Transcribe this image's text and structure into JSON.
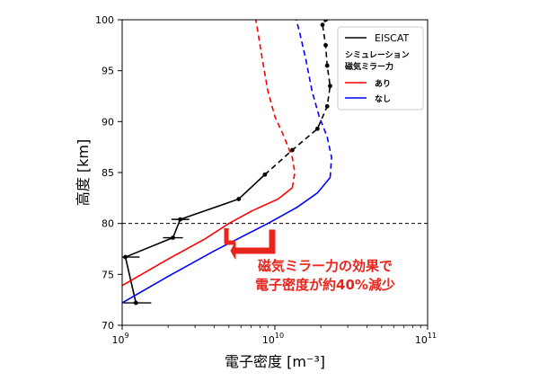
{
  "chart_data": {
    "type": "line",
    "xscale": "log",
    "xlim": [
      1000000000.0,
      100000000000.0
    ],
    "ylim": [
      70,
      100
    ],
    "xlabel": "電子密度 [m⁻³]",
    "ylabel": "高度 [km]",
    "xticks": [
      {
        "value": 1000000000.0,
        "base": "10",
        "exp": "9"
      },
      {
        "value": 10000000000.0,
        "base": "10",
        "exp": "10"
      },
      {
        "value": 100000000000.0,
        "base": "10",
        "exp": "11"
      }
    ],
    "yticks": [
      "70",
      "75",
      "80",
      "85",
      "90",
      "95",
      "100"
    ],
    "reference_line": {
      "y": 80,
      "color": "#000000",
      "style": "dashed"
    },
    "series": [
      {
        "name": "EISCAT",
        "color": "#000000",
        "marker": "dot",
        "points": [
          {
            "x": 1230000000.0,
            "y": 72.2,
            "xerr": [
              1020000000.0,
              1550000000.0
            ]
          },
          {
            "x": 1050000000.0,
            "y": 76.7,
            "xerr": [
              1000000000.0,
              1300000000.0
            ]
          },
          {
            "x": 2150000000.0,
            "y": 78.6,
            "xerr": [
              1850000000.0,
              2500000000.0
            ]
          },
          {
            "x": 2400000000.0,
            "y": 80.4,
            "xerr": [
              2100000000.0,
              2750000000.0
            ]
          },
          {
            "x": 5800000000.0,
            "y": 82.4
          },
          {
            "x": 8600000000.0,
            "y": 84.8
          },
          {
            "x": 13000000000.0,
            "y": 87.2
          },
          {
            "x": 19000000000.0,
            "y": 89.3
          },
          {
            "x": 22000000000.0,
            "y": 91.5
          },
          {
            "x": 23000000000.0,
            "y": 93.5
          },
          {
            "x": 22000000000.0,
            "y": 95.5
          },
          {
            "x": 21500000000.0,
            "y": 97.5
          },
          {
            "x": 20500000000.0,
            "y": 99.5
          },
          {
            "x": 21500000000.0,
            "y": 100.0
          }
        ],
        "dashed_above_y": 84.8
      },
      {
        "name": "あり",
        "color": "#ff0000",
        "dashed_above_y": 83.5,
        "points": [
          {
            "x": 1000000000.0,
            "y": 73.9
          },
          {
            "x": 2000000000.0,
            "y": 76.5
          },
          {
            "x": 3500000000.0,
            "y": 78.5
          },
          {
            "x": 5000000000.0,
            "y": 80.0
          },
          {
            "x": 7000000000.0,
            "y": 81.2
          },
          {
            "x": 10500000000.0,
            "y": 82.4
          },
          {
            "x": 13000000000.0,
            "y": 83.5
          },
          {
            "x": 13500000000.0,
            "y": 85.0
          },
          {
            "x": 13000000000.0,
            "y": 86.5
          },
          {
            "x": 11500000000.0,
            "y": 88.5
          },
          {
            "x": 10000000000.0,
            "y": 90.5
          },
          {
            "x": 9000000000.0,
            "y": 93.0
          },
          {
            "x": 8300000000.0,
            "y": 96.0
          },
          {
            "x": 7700000000.0,
            "y": 99.0
          },
          {
            "x": 7500000000.0,
            "y": 100.0
          }
        ]
      },
      {
        "name": "なし",
        "color": "#0000ff",
        "dashed_above_y": 84.5,
        "points": [
          {
            "x": 1000000000.0,
            "y": 72.2
          },
          {
            "x": 2000000000.0,
            "y": 74.8
          },
          {
            "x": 4000000000.0,
            "y": 77.3
          },
          {
            "x": 9000000000.0,
            "y": 80.0
          },
          {
            "x": 14000000000.0,
            "y": 81.6
          },
          {
            "x": 19000000000.0,
            "y": 83.0
          },
          {
            "x": 23000000000.0,
            "y": 84.5
          },
          {
            "x": 23500000000.0,
            "y": 86.5
          },
          {
            "x": 22000000000.0,
            "y": 88.5
          },
          {
            "x": 19500000000.0,
            "y": 90.5
          },
          {
            "x": 17500000000.0,
            "y": 93.0
          },
          {
            "x": 16000000000.0,
            "y": 96.0
          },
          {
            "x": 14500000000.0,
            "y": 98.8
          },
          {
            "x": 13800000000.0,
            "y": 100.0
          }
        ]
      }
    ],
    "legend": {
      "position": "top-right",
      "observed_label": "EISCAT",
      "group_title_line1": "シミュレーション",
      "group_title_line2": "磁気ミラー力",
      "entries": [
        "あり",
        "なし"
      ]
    },
    "annotation": {
      "line1": "磁気ミラー力の効果で",
      "line2": "電子密度が約40%減少",
      "color": "#e8241c"
    }
  }
}
